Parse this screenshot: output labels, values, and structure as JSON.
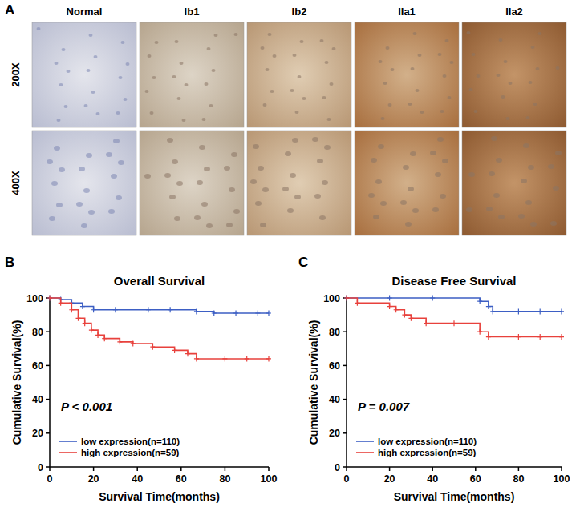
{
  "figure_a": {
    "panel": "A",
    "columns": [
      "Normal",
      "Ib1",
      "Ib2",
      "IIa1",
      "IIa2"
    ],
    "rows": [
      "200X",
      "400X"
    ]
  },
  "chart_data": [
    {
      "panel": "B",
      "type": "line",
      "title": "Overall Survival",
      "x_label": "Survival Time(months)",
      "y_label": "Cumulative Survival(%)",
      "annotation": "P < 0.001",
      "xlim": [
        0,
        100
      ],
      "xticks": [
        0,
        20,
        40,
        60,
        80,
        100
      ],
      "ylim": [
        0,
        100
      ],
      "yticks": [
        0,
        20,
        40,
        60,
        80,
        100
      ],
      "line_style": "step",
      "marker": "plus",
      "legend": "bottom-left",
      "series": [
        {
          "name": "low expression(n=110)",
          "color": "#3d5fc4",
          "x": [
            0,
            5,
            10,
            15,
            20,
            30,
            45,
            55,
            67,
            75,
            85,
            95,
            100
          ],
          "values": [
            100,
            99,
            97,
            95,
            93,
            93,
            93,
            93,
            92,
            91,
            91,
            91,
            91
          ]
        },
        {
          "name": "high expression(n=59)",
          "color": "#e8413c",
          "x": [
            0,
            5,
            10,
            13,
            16,
            19,
            22,
            25,
            32,
            38,
            47,
            57,
            63,
            67,
            80,
            90,
            100
          ],
          "values": [
            100,
            97,
            93,
            88,
            85,
            81,
            78,
            76,
            74,
            73,
            71,
            69,
            67,
            64,
            64,
            64,
            64
          ]
        }
      ]
    },
    {
      "panel": "C",
      "type": "line",
      "title": "Disease Free Survival",
      "x_label": "Survival Time(months)",
      "y_label": "Cumulative Survival(%)",
      "annotation": "P = 0.007",
      "xlim": [
        0,
        100
      ],
      "xticks": [
        0,
        20,
        40,
        60,
        80,
        100
      ],
      "ylim": [
        0,
        100
      ],
      "yticks": [
        0,
        20,
        40,
        60,
        80,
        100
      ],
      "line_style": "step",
      "marker": "plus",
      "legend": "bottom-left",
      "series": [
        {
          "name": "low expression(n=110)",
          "color": "#3d5fc4",
          "x": [
            0,
            20,
            40,
            62,
            66,
            68,
            80,
            90,
            100
          ],
          "values": [
            100,
            100,
            100,
            98,
            95,
            92,
            92,
            92,
            92
          ]
        },
        {
          "name": "high expression(n=59)",
          "color": "#e8413c",
          "x": [
            0,
            5,
            20,
            23,
            27,
            30,
            37,
            50,
            62,
            66,
            80,
            90,
            100
          ],
          "values": [
            100,
            97,
            95,
            93,
            90,
            88,
            85,
            85,
            80,
            77,
            77,
            77,
            77
          ]
        }
      ]
    }
  ]
}
